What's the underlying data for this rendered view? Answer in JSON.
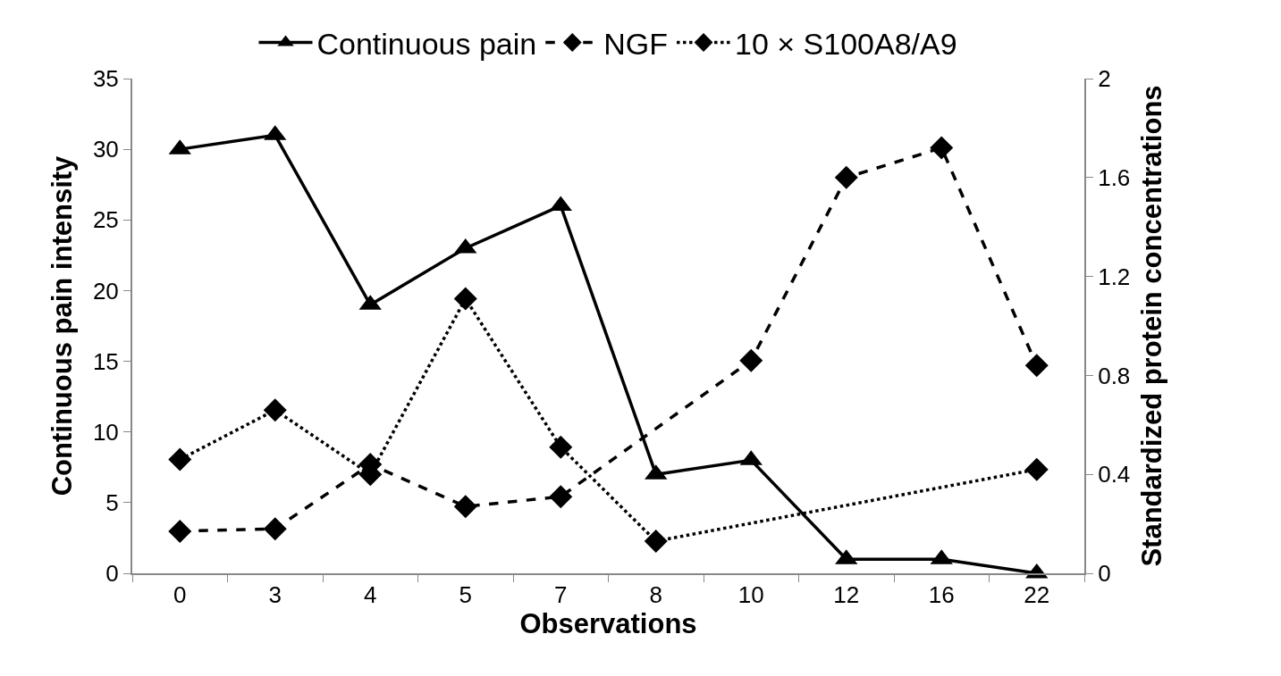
{
  "chart_data": {
    "type": "line",
    "xlabel": "Observations",
    "ylabel": "Continuous pain intensity",
    "y2label": "Standardized protein concentrations",
    "categories": [
      "0",
      "3",
      "4",
      "5",
      "7",
      "8",
      "10",
      "12",
      "16",
      "22"
    ],
    "series": [
      {
        "name": "Continuous pain",
        "color": "#000000",
        "marker": "triangle",
        "line_style": "solid",
        "values": [
          30,
          31,
          19,
          23,
          26,
          7,
          8,
          1,
          1,
          0
        ]
      },
      {
        "name": "NGF",
        "color": "#000000",
        "marker": "diamond",
        "line_style": "dashed",
        "axis": "y2",
        "values": [
          0.17,
          0.18,
          0.44,
          0.27,
          0.31,
          null,
          0.86,
          1.6,
          1.72,
          0.84
        ]
      },
      {
        "name": "10 × S100A8/A9",
        "color": "#000000",
        "marker": "diamond",
        "line_style": "dotted",
        "axis": "y2",
        "values": [
          0.46,
          0.66,
          0.4,
          1.11,
          0.51,
          0.13,
          null,
          null,
          null,
          0.42
        ]
      }
    ],
    "ylim": [
      0,
      35
    ],
    "yticks": [
      0,
      5,
      10,
      15,
      20,
      25,
      30,
      35
    ],
    "y2lim": [
      0,
      2
    ],
    "y2ticks": [
      0,
      {
        "value": 0.4,
        "label": "0.4"
      },
      {
        "value": 0.8,
        "label": "0.8"
      },
      {
        "value": 1.2,
        "label": "1.2"
      },
      {
        "value": 1.6,
        "label": "1.6"
      },
      2
    ],
    "legend": "top"
  }
}
